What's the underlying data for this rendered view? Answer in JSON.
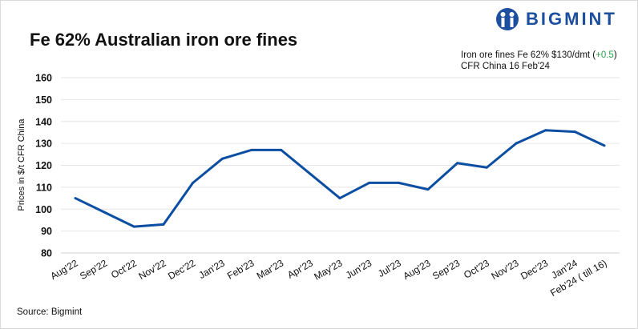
{
  "chart_data": {
    "type": "line",
    "title": "Fe 62% Australian iron ore fines",
    "xlabel": "",
    "ylabel": "Prices in $/t CFR China",
    "ylim": [
      80,
      160
    ],
    "yticks": [
      80,
      90,
      100,
      110,
      120,
      130,
      140,
      150,
      160
    ],
    "grid": true,
    "categories": [
      "Aug'22",
      "Sep'22",
      "Oct'22",
      "Nov'22",
      "Dec'22",
      "Jan'23",
      "Feb'23",
      "Mar'23",
      "Apr'23",
      "May'23",
      "Jun'23",
      "Jul'23",
      "Aug'23",
      "Sep'23",
      "Oct'23",
      "Nov'23",
      "Dec'23",
      "Jan'24",
      "Feb'24 ( till 16)"
    ],
    "series": [
      {
        "name": "Fe 62% Australian iron ore fines",
        "color": "#0b4ea2",
        "values": [
          105,
          98.5,
          92,
          93,
          112,
          123,
          127,
          127,
          116,
          105,
          112,
          112,
          109,
          121,
          119,
          130,
          136,
          135.3,
          129
        ]
      }
    ]
  },
  "logo": {
    "text": "BIGMINT",
    "color": "#1c4fa0"
  },
  "annotation": {
    "line1_prefix": "Iron ore fines Fe 62% $130/dmt (",
    "change": "+0.5",
    "line1_suffix": ")",
    "line2": "CFR China 16 Feb'24"
  },
  "source": "Source: Bigmint"
}
